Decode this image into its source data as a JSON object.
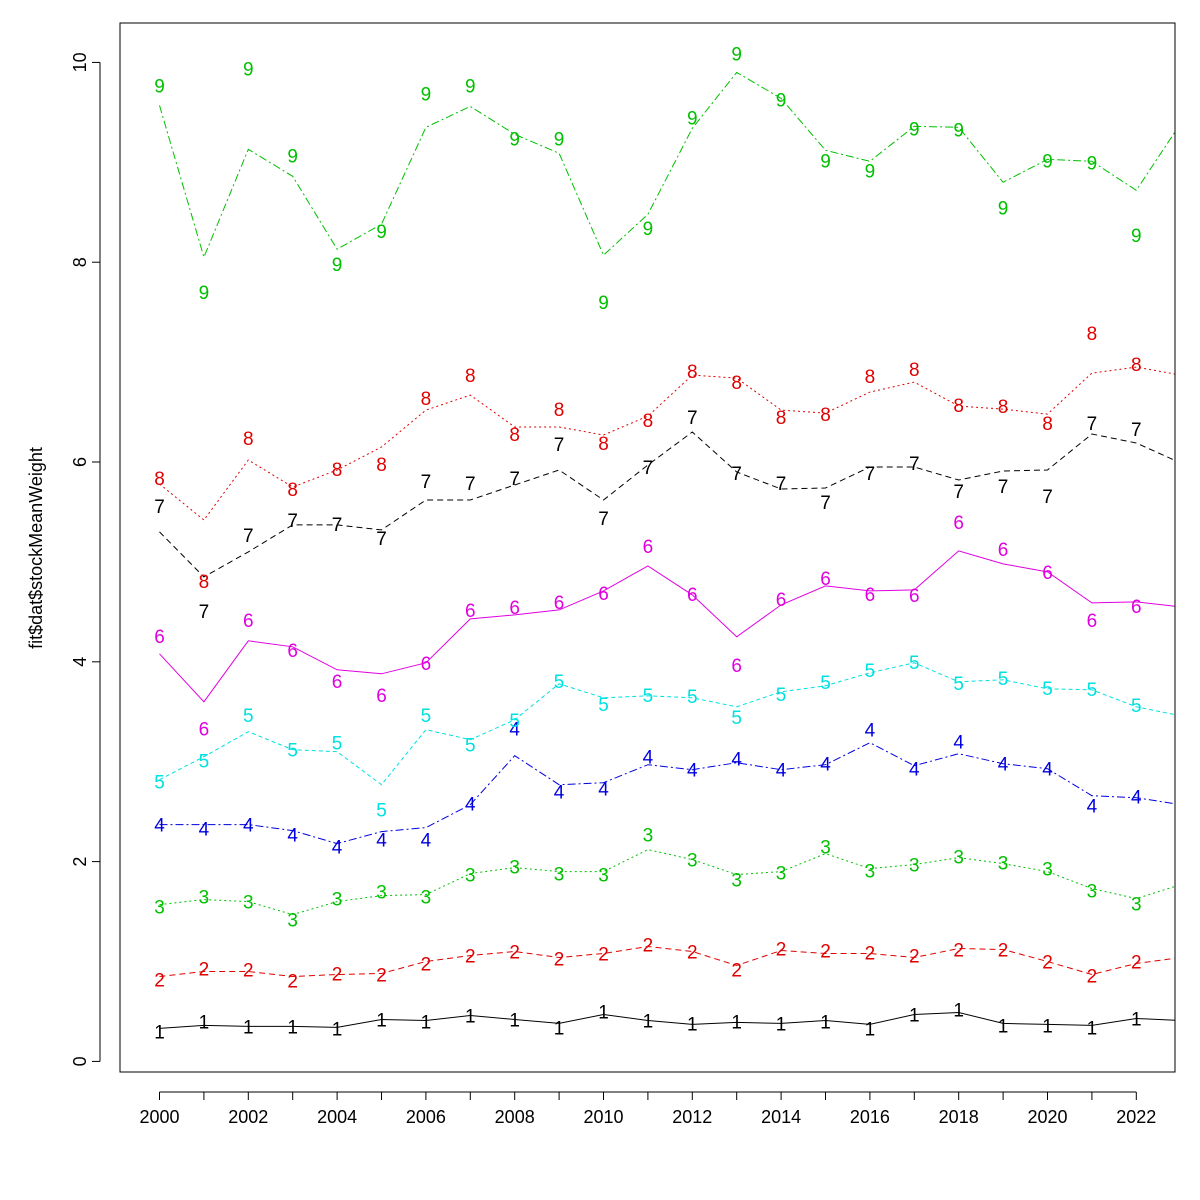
{
  "chart_data": {
    "type": "line",
    "title": "",
    "xlabel": "",
    "ylabel": "fit$dat$stockMeanWeight",
    "xlim": [
      1999.0,
      2023.0
    ],
    "ylim": [
      -0.1,
      10.5
    ],
    "x_ticks": [
      2000,
      2002,
      2004,
      2006,
      2008,
      2010,
      2012,
      2014,
      2016,
      2018,
      2020,
      2022
    ],
    "y_ticks": [
      0,
      2,
      4,
      6,
      8,
      10
    ],
    "x": [
      2000,
      2001,
      2002,
      2003,
      2004,
      2005,
      2006,
      2007,
      2008,
      2009,
      2010,
      2011,
      2012,
      2013,
      2014,
      2015,
      2016,
      2017,
      2018,
      2019,
      2020,
      2021,
      2022,
      2023
    ],
    "grid": false,
    "legend": "none",
    "series": [
      {
        "name": "1",
        "color": "#000000",
        "dash": "",
        "line": [
          0.33,
          0.36,
          0.35,
          0.35,
          0.34,
          0.42,
          0.41,
          0.46,
          0.42,
          0.38,
          0.47,
          0.41,
          0.37,
          0.39,
          0.38,
          0.41,
          0.37,
          0.47,
          0.49,
          0.38,
          0.37,
          0.36,
          0.43,
          0.41
        ],
        "points": [
          0.3,
          0.4,
          0.35,
          0.35,
          0.33,
          0.42,
          0.4,
          0.46,
          0.42,
          0.34,
          0.5,
          0.41,
          0.38,
          0.4,
          0.38,
          0.4,
          0.33,
          0.47,
          0.52,
          0.36,
          0.36,
          0.34,
          0.43,
          null
        ]
      },
      {
        "name": "2",
        "color": "#df0000",
        "dash": "6 4",
        "line": [
          0.85,
          0.9,
          0.9,
          0.85,
          0.87,
          0.88,
          1.0,
          1.06,
          1.1,
          1.04,
          1.08,
          1.15,
          1.1,
          0.96,
          1.11,
          1.08,
          1.08,
          1.04,
          1.13,
          1.12,
          1.0,
          0.87,
          0.98,
          1.04
        ],
        "points": [
          0.82,
          0.93,
          0.92,
          0.81,
          0.88,
          0.87,
          0.98,
          1.06,
          1.1,
          1.03,
          1.08,
          1.17,
          1.1,
          0.92,
          1.13,
          1.11,
          1.09,
          1.06,
          1.12,
          1.12,
          1.0,
          0.86,
          1.0,
          null
        ]
      },
      {
        "name": "3",
        "color": "#00c000",
        "dash": "2 3",
        "line": [
          1.57,
          1.62,
          1.6,
          1.47,
          1.6,
          1.66,
          1.67,
          1.88,
          1.94,
          1.9,
          1.9,
          2.12,
          2.02,
          1.87,
          1.9,
          2.08,
          1.93,
          1.97,
          2.04,
          1.98,
          1.9,
          1.73,
          1.63,
          1.77
        ],
        "points": [
          1.55,
          1.65,
          1.6,
          1.42,
          1.63,
          1.7,
          1.65,
          1.87,
          1.95,
          1.88,
          1.87,
          2.27,
          2.02,
          1.82,
          1.89,
          2.15,
          1.91,
          1.97,
          2.05,
          1.99,
          1.93,
          1.71,
          1.58,
          null
        ]
      },
      {
        "name": "4",
        "color": "#0000df",
        "dash": "8 3 2 3",
        "line": [
          2.37,
          2.37,
          2.37,
          2.31,
          2.18,
          2.3,
          2.34,
          2.57,
          3.06,
          2.77,
          2.79,
          2.97,
          2.92,
          2.99,
          2.92,
          2.97,
          3.19,
          2.96,
          3.08,
          2.98,
          2.93,
          2.66,
          2.64,
          2.57
        ],
        "points": [
          2.37,
          2.33,
          2.37,
          2.27,
          2.15,
          2.22,
          2.22,
          2.58,
          3.33,
          2.7,
          2.73,
          3.05,
          2.92,
          3.03,
          2.92,
          2.98,
          3.32,
          2.93,
          3.2,
          2.98,
          2.93,
          2.56,
          2.65,
          null
        ]
      },
      {
        "name": "5",
        "color": "#00e0e0",
        "dash": "4 3",
        "line": [
          2.82,
          3.05,
          3.3,
          3.12,
          3.1,
          2.77,
          3.32,
          3.22,
          3.42,
          3.78,
          3.64,
          3.66,
          3.64,
          3.55,
          3.7,
          3.76,
          3.89,
          3.99,
          3.8,
          3.82,
          3.73,
          3.72,
          3.55,
          3.46
        ],
        "points": [
          2.8,
          3.01,
          3.47,
          3.12,
          3.19,
          2.52,
          3.47,
          3.17,
          3.42,
          3.81,
          3.58,
          3.67,
          3.66,
          3.45,
          3.68,
          3.8,
          3.92,
          4.0,
          3.79,
          3.84,
          3.74,
          3.73,
          3.57,
          null
        ]
      },
      {
        "name": "6",
        "color": "#e000e0",
        "dash": "",
        "line": [
          4.08,
          3.6,
          4.21,
          4.15,
          3.92,
          3.88,
          3.99,
          4.43,
          4.47,
          4.52,
          4.71,
          4.96,
          4.67,
          4.25,
          4.57,
          4.76,
          4.71,
          4.72,
          5.11,
          4.98,
          4.9,
          4.59,
          4.6,
          4.55
        ],
        "points": [
          4.26,
          3.33,
          4.42,
          4.12,
          3.81,
          3.67,
          3.99,
          4.52,
          4.55,
          4.6,
          4.69,
          5.16,
          4.68,
          3.97,
          4.63,
          4.84,
          4.68,
          4.67,
          5.4,
          5.13,
          4.9,
          4.42,
          4.56,
          null
        ]
      },
      {
        "name": "7",
        "color": "#000000",
        "dash": "6 4",
        "line": [
          5.3,
          4.85,
          5.1,
          5.37,
          5.37,
          5.32,
          5.62,
          5.62,
          5.77,
          5.92,
          5.62,
          5.97,
          6.3,
          5.9,
          5.73,
          5.74,
          5.95,
          5.95,
          5.82,
          5.91,
          5.92,
          6.28,
          6.19,
          5.99
        ],
        "points": [
          5.56,
          4.51,
          5.27,
          5.42,
          5.38,
          5.24,
          5.81,
          5.79,
          5.84,
          6.18,
          5.44,
          5.95,
          6.45,
          5.89,
          5.79,
          5.6,
          5.89,
          5.99,
          5.71,
          5.76,
          5.66,
          6.39,
          6.33,
          null
        ]
      },
      {
        "name": "8",
        "color": "#df0000",
        "dash": "2 3",
        "line": [
          5.78,
          5.42,
          6.02,
          5.75,
          5.92,
          6.15,
          6.52,
          6.67,
          6.35,
          6.35,
          6.27,
          6.46,
          6.87,
          6.84,
          6.52,
          6.49,
          6.7,
          6.8,
          6.56,
          6.53,
          6.48,
          6.89,
          6.95,
          6.87
        ],
        "points": [
          5.84,
          4.81,
          6.24,
          5.73,
          5.93,
          5.98,
          6.64,
          6.87,
          6.28,
          6.53,
          6.19,
          6.42,
          6.91,
          6.8,
          6.45,
          6.48,
          6.86,
          6.93,
          6.57,
          6.56,
          6.39,
          7.29,
          6.98,
          null
        ]
      },
      {
        "name": "9",
        "color": "#00c000",
        "dash": "8 3 2 3",
        "line": [
          9.57,
          8.05,
          9.13,
          8.86,
          8.13,
          8.38,
          9.35,
          9.56,
          9.28,
          9.09,
          8.07,
          8.48,
          9.34,
          9.9,
          9.64,
          9.12,
          9.01,
          9.36,
          9.35,
          8.8,
          9.03,
          9.01,
          8.72,
          9.39
        ],
        "points": [
          9.77,
          7.7,
          9.94,
          9.07,
          7.98,
          8.31,
          9.69,
          9.77,
          9.24,
          9.24,
          7.6,
          8.34,
          9.45,
          10.09,
          9.63,
          9.02,
          8.92,
          9.34,
          9.33,
          8.55,
          9.02,
          9.0,
          8.27,
          null
        ]
      }
    ]
  }
}
